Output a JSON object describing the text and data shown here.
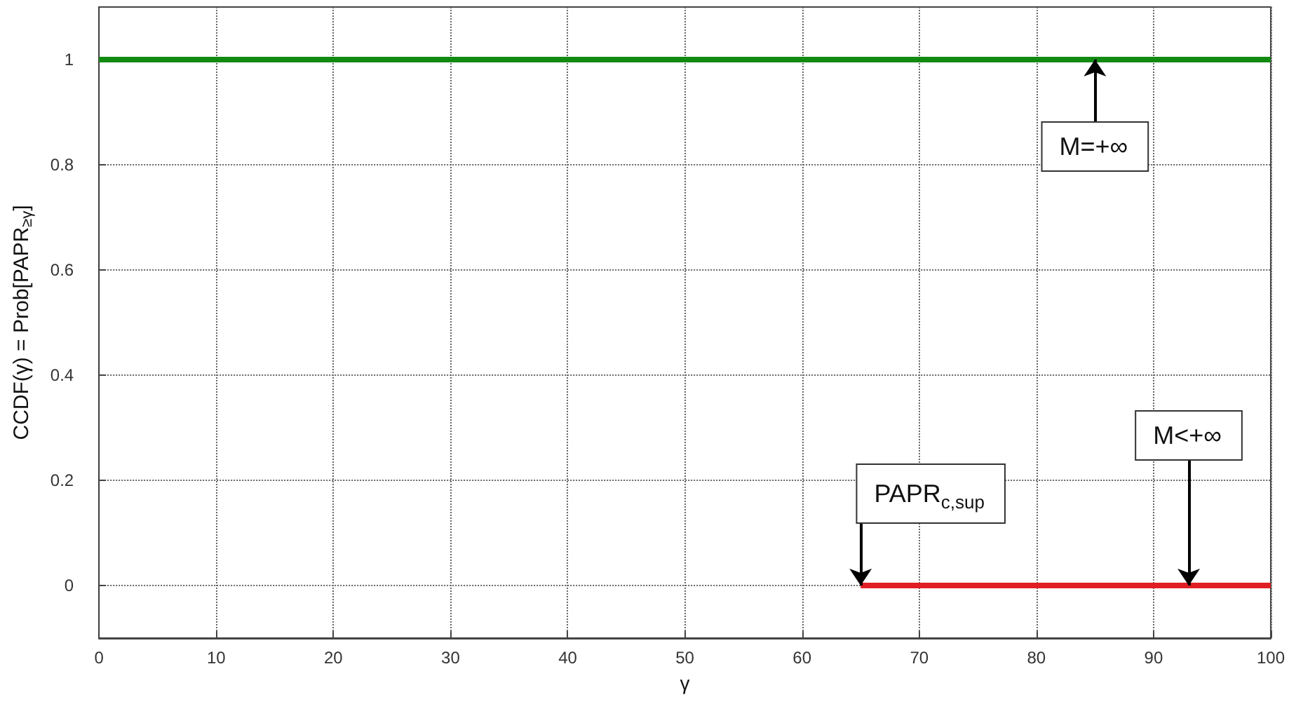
{
  "chart_data": {
    "type": "line",
    "xlabel": "γ",
    "ylabel": "CCDF(γ) = Prob[PAPR$_{≥γ}$]",
    "xlim": [
      0,
      100
    ],
    "xticks": [
      0,
      10,
      20,
      30,
      40,
      50,
      60,
      70,
      80,
      90,
      100
    ],
    "ylim": [
      -0.1,
      1.1
    ],
    "yticks": [
      0,
      0.2,
      0.4,
      0.6,
      0.8,
      1
    ],
    "grid": true,
    "marker": "none",
    "line_style": "solid",
    "series": [
      {
        "x": [
          0,
          100
        ],
        "values": [
          1,
          1
        ],
        "color": "#128a12"
      },
      {
        "x": [
          65,
          100
        ],
        "values": [
          0,
          0
        ],
        "color": "#e01e24"
      }
    ],
    "annotations": [
      {
        "text": "M=+∞",
        "x": 85,
        "y": 1
      },
      {
        "text": "M<+∞",
        "x": 93,
        "y": 0
      },
      {
        "text": "PAPR$_{c,sup}$",
        "x": 65,
        "y": 0
      }
    ]
  }
}
